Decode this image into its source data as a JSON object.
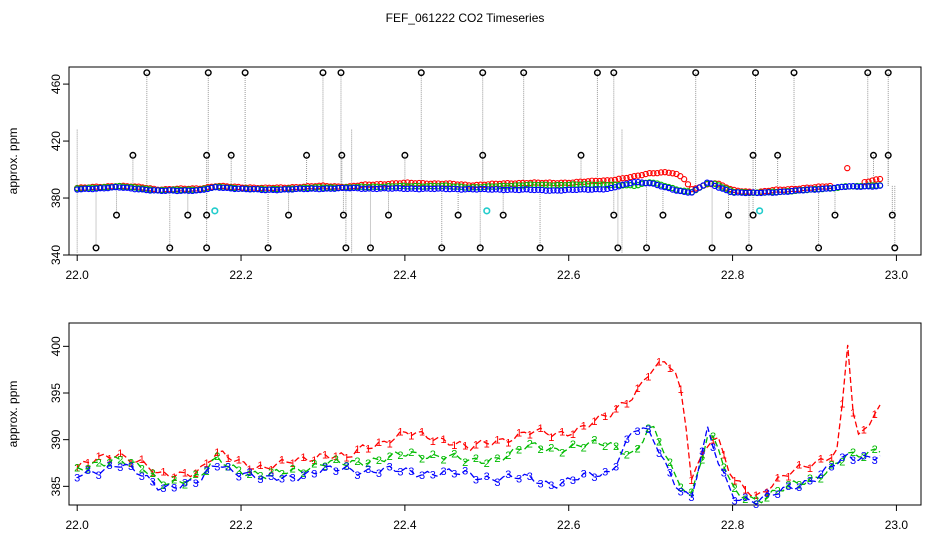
{
  "title": "FEF_061222  CO2 Timeseries",
  "colors": {
    "series1": "#ff0000",
    "series2": "#00bb00",
    "series3": "#0000ff",
    "outlier": "#000000",
    "flag": "#22cccc",
    "spike": "#999999"
  },
  "chart_data": [
    {
      "type": "scatter",
      "title": "FEF_061222  CO2 Timeseries",
      "ylabel": "approx. ppm",
      "xlabel": "",
      "xlim": [
        21.99,
        23.03
      ],
      "ylim": [
        340,
        472
      ],
      "xticks": [
        "22.0",
        "22.2",
        "22.4",
        "22.6",
        "22.8",
        "23.0"
      ],
      "yticks": [
        "340",
        "380",
        "420",
        "460"
      ],
      "grid": false,
      "legend": "none",
      "outliers": [
        {
          "x": 22.085,
          "y": 468
        },
        {
          "x": 22.16,
          "y": 468
        },
        {
          "x": 22.205,
          "y": 468
        },
        {
          "x": 22.3,
          "y": 468
        },
        {
          "x": 22.322,
          "y": 468
        },
        {
          "x": 22.42,
          "y": 468
        },
        {
          "x": 22.495,
          "y": 468
        },
        {
          "x": 22.545,
          "y": 468
        },
        {
          "x": 22.635,
          "y": 468
        },
        {
          "x": 22.655,
          "y": 468
        },
        {
          "x": 22.755,
          "y": 468
        },
        {
          "x": 22.828,
          "y": 468
        },
        {
          "x": 22.875,
          "y": 468
        },
        {
          "x": 22.965,
          "y": 468
        },
        {
          "x": 22.99,
          "y": 468
        },
        {
          "x": 22.068,
          "y": 410
        },
        {
          "x": 22.158,
          "y": 410
        },
        {
          "x": 22.188,
          "y": 410
        },
        {
          "x": 22.28,
          "y": 410
        },
        {
          "x": 22.323,
          "y": 410
        },
        {
          "x": 22.4,
          "y": 410
        },
        {
          "x": 22.495,
          "y": 410
        },
        {
          "x": 22.615,
          "y": 410
        },
        {
          "x": 22.825,
          "y": 410
        },
        {
          "x": 22.855,
          "y": 410
        },
        {
          "x": 22.972,
          "y": 410
        },
        {
          "x": 22.99,
          "y": 410
        },
        {
          "x": 22.048,
          "y": 368
        },
        {
          "x": 22.135,
          "y": 368
        },
        {
          "x": 22.158,
          "y": 368
        },
        {
          "x": 22.258,
          "y": 368
        },
        {
          "x": 22.325,
          "y": 368
        },
        {
          "x": 22.38,
          "y": 368
        },
        {
          "x": 22.465,
          "y": 368
        },
        {
          "x": 22.52,
          "y": 368
        },
        {
          "x": 22.655,
          "y": 368
        },
        {
          "x": 22.715,
          "y": 368
        },
        {
          "x": 22.795,
          "y": 368
        },
        {
          "x": 22.825,
          "y": 368
        },
        {
          "x": 22.925,
          "y": 368
        },
        {
          "x": 22.995,
          "y": 368
        },
        {
          "x": 22.023,
          "y": 345
        },
        {
          "x": 22.113,
          "y": 345
        },
        {
          "x": 22.158,
          "y": 345
        },
        {
          "x": 22.233,
          "y": 345
        },
        {
          "x": 22.328,
          "y": 345
        },
        {
          "x": 22.358,
          "y": 345
        },
        {
          "x": 22.445,
          "y": 345
        },
        {
          "x": 22.492,
          "y": 345
        },
        {
          "x": 22.565,
          "y": 345
        },
        {
          "x": 22.66,
          "y": 345
        },
        {
          "x": 22.695,
          "y": 345
        },
        {
          "x": 22.775,
          "y": 345
        },
        {
          "x": 22.82,
          "y": 345
        },
        {
          "x": 22.905,
          "y": 345
        },
        {
          "x": 22.998,
          "y": 345
        }
      ],
      "flagged": [
        {
          "x": 22.168,
          "y": 371
        },
        {
          "x": 22.5,
          "y": 371
        },
        {
          "x": 22.833,
          "y": 371
        }
      ]
    },
    {
      "type": "line",
      "title": "",
      "ylabel": "approx. ppm",
      "xlabel": "",
      "xlim": [
        21.99,
        23.03
      ],
      "ylim": [
        383,
        402.5
      ],
      "xticks": [
        "22.0",
        "22.2",
        "22.4",
        "22.6",
        "22.8",
        "23.0"
      ],
      "yticks": [
        "385",
        "390",
        "395",
        "400"
      ],
      "grid": false,
      "legend": "none",
      "markers": [
        "1",
        "2",
        "3"
      ],
      "x": [
        22.0,
        22.05,
        22.08,
        22.1,
        22.15,
        22.17,
        22.2,
        22.23,
        22.25,
        22.3,
        22.33,
        22.35,
        22.4,
        22.45,
        22.48,
        22.5,
        22.55,
        22.58,
        22.6,
        22.65,
        22.68,
        22.7,
        22.72,
        22.73,
        22.74,
        22.75,
        22.77,
        22.78,
        22.8,
        22.83,
        22.85,
        22.9,
        22.93,
        22.94,
        22.95,
        22.98
      ],
      "series": [
        {
          "values": [
            387.0,
            388.6,
            387.5,
            386.0,
            386.8,
            388.4,
            387.6,
            387.0,
            387.3,
            388.5,
            387.9,
            389.2,
            390.6,
            390.1,
            389.0,
            389.6,
            390.8,
            390.5,
            390.9,
            392.5,
            395.0,
            397.5,
            398.2,
            397.0,
            394.0,
            386.0,
            389.8,
            390.5,
            385.5,
            384.0,
            385.5,
            387.5,
            389.0,
            401.0,
            389.5,
            393.5
          ]
        },
        {
          "values": [
            386.5,
            388.2,
            386.8,
            385.4,
            386.0,
            387.8,
            386.8,
            386.0,
            386.4,
            387.5,
            387.3,
            387.8,
            388.3,
            388.4,
            387.5,
            387.8,
            389.2,
            389.0,
            389.3,
            389.5,
            388.5,
            391.5,
            388.0,
            386.0,
            385.0,
            384.3,
            390.5,
            389.5,
            384.5,
            383.6,
            384.2,
            386.0,
            387.5,
            388.3,
            388.0,
            389.2
          ]
        },
        {
          "values": [
            386.0,
            387.5,
            386.0,
            385.0,
            385.4,
            387.5,
            386.5,
            385.6,
            386.0,
            386.6,
            386.9,
            386.7,
            386.6,
            386.4,
            386.2,
            386.0,
            385.8,
            385.3,
            385.6,
            386.5,
            391.3,
            390.5,
            387.0,
            385.5,
            384.4,
            384.0,
            391.0,
            388.0,
            384.0,
            383.5,
            384.0,
            386.0,
            387.5,
            388.0,
            388.0,
            388.5
          ]
        }
      ]
    }
  ]
}
